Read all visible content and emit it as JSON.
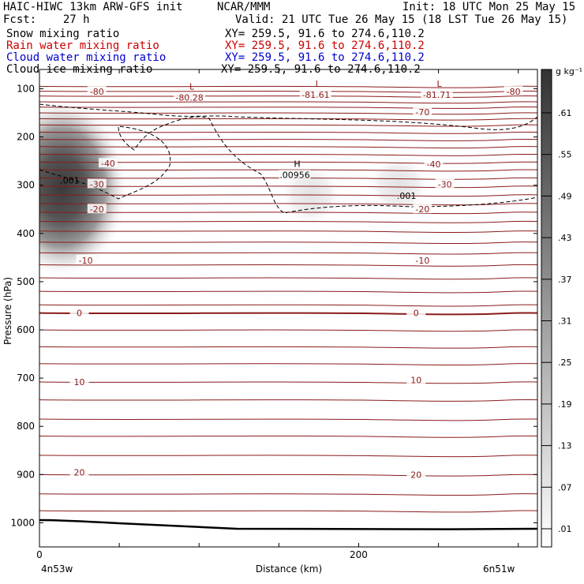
{
  "header": {
    "model": "HAIC-HIWC 13km ARW-GFS init",
    "org": "NCAR/MMM",
    "init": "Init: 18 UTC Mon 25 May 15",
    "fcst": "Fcst:    27 h",
    "valid": "Valid: 21 UTC Tue 26 May 15 (18 LST Tue 26 May 15)",
    "fields": [
      {
        "name": "Snow mixing ratio",
        "xy": "XY= 259.5, 91.6 to 274.6,110.2",
        "color": "#000000"
      },
      {
        "name": "Rain water mixing ratio",
        "xy": "XY= 259.5, 91.6 to 274.6,110.2",
        "color": "#cc0000"
      },
      {
        "name": "Cloud water mixing ratio",
        "xy": "XY= 259.5, 91.6 to 274.6,110.2",
        "color": "#0000cc"
      },
      {
        "name": "Cloud ice mixing ratio",
        "xy": "XY= 259.5, 91.6 to 274.6,110.2",
        "color": "#000000"
      }
    ]
  },
  "chart_data": {
    "type": "heatmap",
    "xlabel": "Distance (km)",
    "ylabel": "Pressure (hPa)",
    "xlim": [
      0,
      312
    ],
    "ylim": [
      1050,
      60
    ],
    "x_ticks": [
      0,
      200
    ],
    "y_ticks": [
      100,
      200,
      300,
      400,
      500,
      600,
      700,
      800,
      900,
      1000
    ],
    "x_endpoints": [
      "4n53w",
      "6n51w"
    ],
    "colorbar": {
      "unit": "g kg⁻¹",
      "ticks": [
        ".01",
        ".07",
        ".13",
        ".19",
        ".25",
        ".31",
        ".37",
        ".43",
        ".49",
        ".55",
        ".61"
      ]
    },
    "temperature_contour_labels": [
      {
        "text": "-80",
        "x": 36,
        "p": 106
      },
      {
        "text": "-80",
        "x": 297,
        "p": 106
      },
      {
        "text": "-70",
        "x": 240,
        "p": 148
      },
      {
        "text": "-40",
        "x": 43,
        "p": 255
      },
      {
        "text": "-40",
        "x": 247,
        "p": 256
      },
      {
        "text": "-30",
        "x": 36,
        "p": 298
      },
      {
        "text": "-30",
        "x": 254,
        "p": 298
      },
      {
        "text": "-20",
        "x": 36,
        "p": 350
      },
      {
        "text": "-20",
        "x": 240,
        "p": 350
      },
      {
        "text": "-10",
        "x": 29,
        "p": 456
      },
      {
        "text": "-10",
        "x": 240,
        "p": 456
      },
      {
        "text": "0",
        "x": 25,
        "p": 565
      },
      {
        "text": "0",
        "x": 236,
        "p": 565
      },
      {
        "text": "10",
        "x": 25,
        "p": 708
      },
      {
        "text": "10",
        "x": 236,
        "p": 704
      },
      {
        "text": "20",
        "x": 25,
        "p": 895
      },
      {
        "text": "20",
        "x": 236,
        "p": 900
      }
    ],
    "extrema": [
      {
        "kind": "L",
        "value": "-80.28",
        "x": 93,
        "p": 105
      },
      {
        "kind": "L",
        "value": "-81.61",
        "x": 172,
        "p": 99
      },
      {
        "kind": "L",
        "value": "-81.71",
        "x": 248,
        "p": 99
      },
      {
        "kind": "H",
        "value": ".00956",
        "x": 159,
        "p": 265
      }
    ],
    "cloud_contour_labels": [
      {
        "text": ".001",
        "x": 19,
        "p": 290
      },
      {
        "text": ".001",
        "x": 230,
        "p": 322
      }
    ],
    "shading_maxima": [
      {
        "x": 14,
        "p": 305,
        "value": 0.55
      },
      {
        "x": 225,
        "p": 300,
        "value": 0.04
      },
      {
        "x": 170,
        "p": 320,
        "value": 0.02
      }
    ]
  }
}
